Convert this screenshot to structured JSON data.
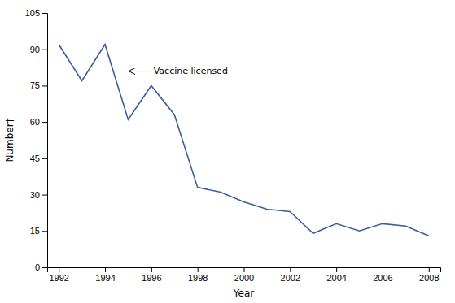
{
  "chart_data": {
    "type": "line",
    "x": [
      1992,
      1993,
      1994,
      1995,
      1996,
      1997,
      1998,
      1999,
      2000,
      2001,
      2002,
      2003,
      2004,
      2005,
      2006,
      2007,
      2008
    ],
    "values": [
      92,
      77,
      92,
      61,
      75,
      63,
      33,
      31,
      27,
      24,
      23,
      14,
      18,
      15,
      18,
      17,
      13
    ],
    "color": "#3a5fa0",
    "xlabel": "Year",
    "ylabel": "Number†",
    "xlim": [
      1991.5,
      2008.5
    ],
    "ylim": [
      0,
      105
    ],
    "xticks": [
      1992,
      1994,
      1996,
      1998,
      2000,
      2002,
      2004,
      2006,
      2008
    ],
    "yticks": [
      0,
      15,
      30,
      45,
      60,
      75,
      90,
      105
    ],
    "grid": false,
    "annotations": [
      {
        "text": "Vaccine licensed",
        "x": 1996.1,
        "y": 81,
        "arrow_x": 1995.05,
        "arrow_y": 81
      }
    ]
  }
}
